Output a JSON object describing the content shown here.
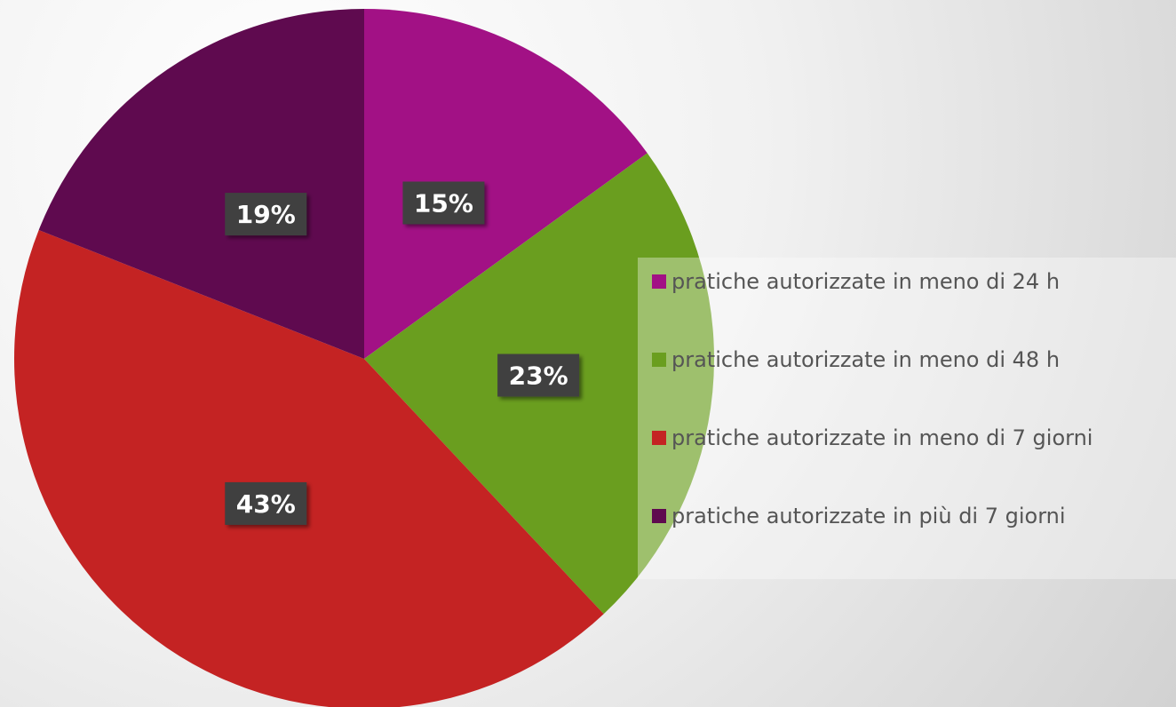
{
  "chart_data": {
    "type": "pie",
    "categories": [
      "pratiche autorizzate in meno di 24 h",
      "pratiche autorizzate in meno di 48 h",
      "pratiche autorizzate in meno di 7 giorni",
      "pratiche autorizzate in più di 7 giorni"
    ],
    "values": [
      15,
      23,
      43,
      19
    ],
    "value_labels": [
      "15%",
      "23%",
      "43%",
      "19%"
    ],
    "colors": [
      "#a21185",
      "#6a9e1f",
      "#c42323",
      "#5f0a4f"
    ],
    "legend": "right"
  }
}
